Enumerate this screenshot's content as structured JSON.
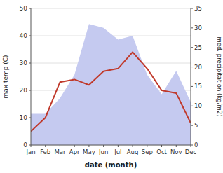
{
  "chart_data": {
    "type": "line",
    "xlabel": "date (month)",
    "ylabel": "max temp (C)",
    "y2label": "med. precipitation (kg/m2)",
    "categories": [
      "Jan",
      "Feb",
      "Mar",
      "Apr",
      "May",
      "Jun",
      "Jul",
      "Aug",
      "Sep",
      "Oct",
      "Nov",
      "Dec"
    ],
    "series": [
      {
        "type": "area",
        "axis": "y2",
        "color": "#c5caf0",
        "values": [
          8,
          8,
          12,
          18,
          31,
          30,
          27,
          28,
          18,
          13,
          19,
          11
        ]
      },
      {
        "type": "line",
        "color": "#c0392b",
        "values": [
          5,
          10,
          23,
          24,
          22,
          27,
          28,
          34,
          28,
          20,
          19,
          8
        ]
      }
    ],
    "ylim": [
      0,
      50
    ],
    "yticks": [
      0,
      10,
      20,
      30,
      40,
      50
    ],
    "y2lim": [
      0,
      35
    ],
    "y2ticks": [
      0,
      5,
      10,
      15,
      20,
      25,
      30,
      35
    ],
    "grid": true
  }
}
